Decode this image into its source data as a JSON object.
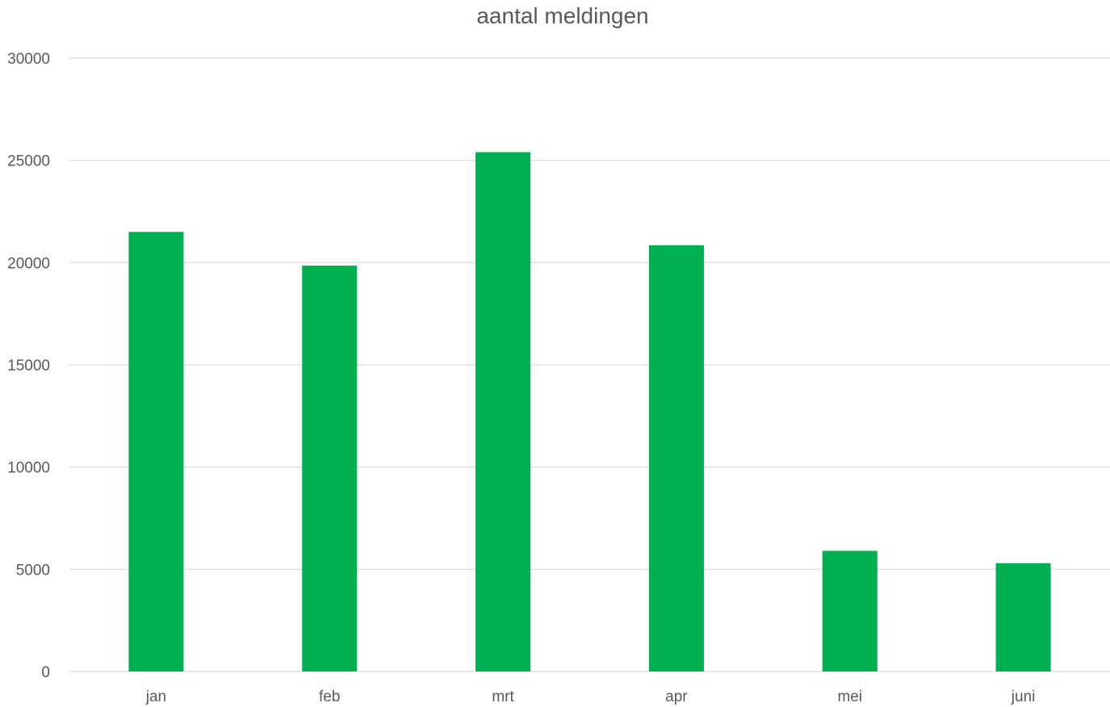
{
  "chart_data": {
    "type": "bar",
    "title": "aantal meldingen",
    "xlabel": "",
    "ylabel": "",
    "categories": [
      "jan",
      "feb",
      "mrt",
      "apr",
      "mei",
      "juni"
    ],
    "values": [
      21500,
      19850,
      25400,
      20850,
      5900,
      5300
    ],
    "ylim": [
      0,
      30000
    ],
    "yticks": [
      0,
      5000,
      10000,
      15000,
      20000,
      25000,
      30000
    ],
    "grid": true,
    "legend": "none",
    "bar_color": "#00b050",
    "gridline_color": "#d9d9d9",
    "text_color": "#595959"
  }
}
